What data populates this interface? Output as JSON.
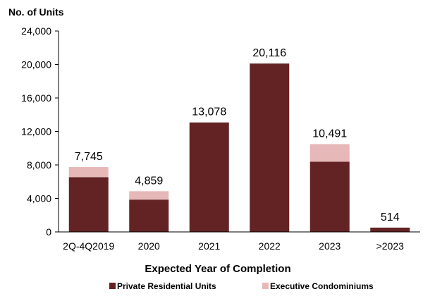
{
  "chart_data": {
    "type": "bar",
    "stacked": true,
    "title": "",
    "ylabel": "No. of Units",
    "xlabel": "Expected Year of Completion",
    "categories": [
      "2Q-4Q2019",
      "2020",
      "2021",
      "2022",
      "2023",
      ">2023"
    ],
    "series": [
      {
        "name": "Private Residential Units",
        "color": "#632324",
        "values": [
          6545,
          3859,
          13078,
          20116,
          8391,
          514
        ]
      },
      {
        "name": "Executive Condominiums",
        "color": "#e6b8b8",
        "values": [
          1200,
          1000,
          0,
          0,
          2100,
          0
        ]
      }
    ],
    "totals": [
      "7,745",
      "4,859",
      "13,078",
      "20,116",
      "10,491",
      "514"
    ],
    "yticks": [
      0,
      4000,
      8000,
      12000,
      16000,
      20000,
      24000
    ],
    "ytick_labels": [
      "0",
      "4,000",
      "8,000",
      "12,000",
      "16,000",
      "20,000",
      "24,000"
    ],
    "ylim": [
      0,
      24000
    ],
    "grid": false,
    "legend_position": "bottom"
  }
}
